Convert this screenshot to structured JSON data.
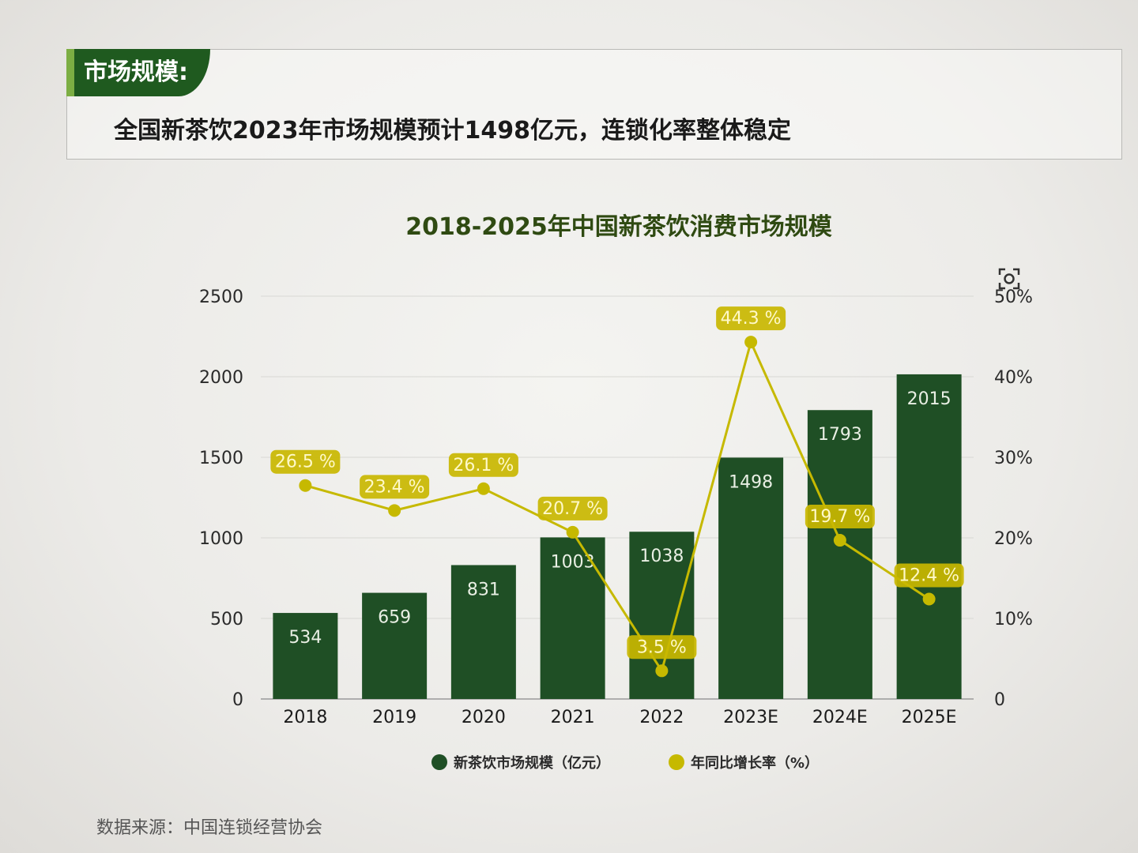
{
  "header": {
    "tag": "市场规模:",
    "headline": "全国新茶饮2023年市场规模预计1498亿元，连锁化率整体稳定"
  },
  "icons": {
    "capture": "screen-capture-icon"
  },
  "colors": {
    "bar": "#1f4f25",
    "line": "#c6b900",
    "label_bg": "#c9b700",
    "accent": "#1f5a1f"
  },
  "chart_data": {
    "type": "bar",
    "title": "2018-2025年中国新茶饮消费市场规模",
    "categories": [
      "2018",
      "2019",
      "2020",
      "2021",
      "2022",
      "2023E",
      "2024E",
      "2025E"
    ],
    "series": [
      {
        "name": "新茶饮市场规模（亿元）",
        "type": "bar",
        "axis": "left",
        "values": [
          534,
          659,
          831,
          1003,
          1038,
          1498,
          1793,
          2015
        ],
        "labels": [
          "534",
          "659",
          "831",
          "1003",
          "1038",
          "1498",
          "1793",
          "2015"
        ]
      },
      {
        "name": "年同比增长率（%）",
        "type": "line",
        "axis": "right",
        "values": [
          26.5,
          23.4,
          26.1,
          20.7,
          3.5,
          44.3,
          19.7,
          12.4
        ],
        "labels": [
          "26.5 %",
          "23.4 %",
          "26.1 %",
          "20.7 %",
          "3.5 %",
          "44.3 %",
          "19.7 %",
          "12.4 %"
        ]
      }
    ],
    "y_left": {
      "min": 0,
      "max": 2500,
      "ticks": [
        "0",
        "500",
        "1000",
        "1500",
        "2000",
        "2500"
      ]
    },
    "y_right": {
      "min": 0,
      "max": 50,
      "ticks": [
        "0",
        "10%",
        "20%",
        "30%",
        "40%",
        "50%"
      ]
    },
    "grid": "horizontal",
    "legend_position": "bottom-center"
  },
  "source": "数据来源：中国连锁经营协会"
}
